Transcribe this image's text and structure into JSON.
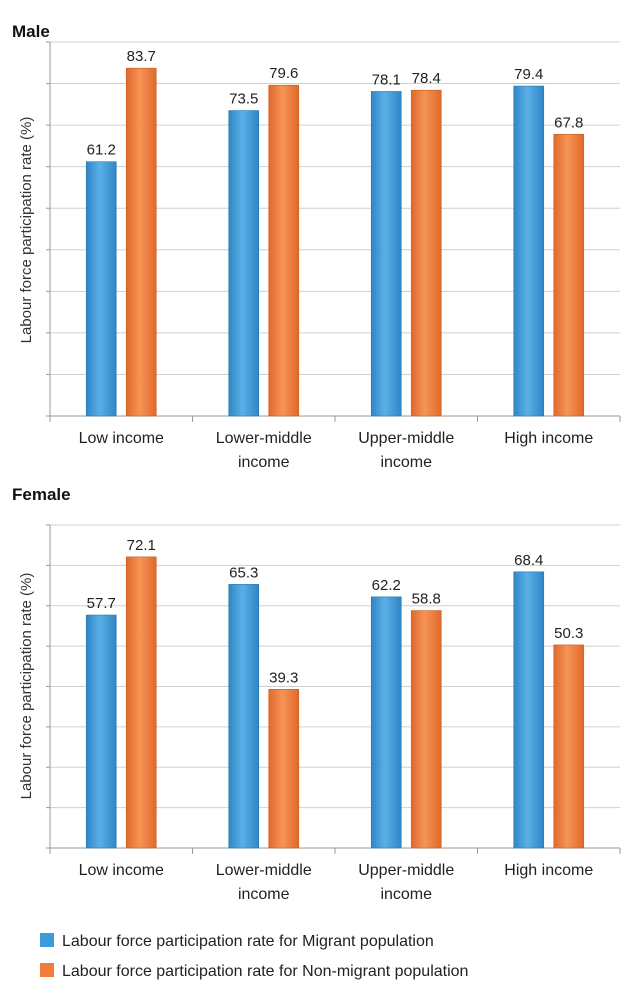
{
  "chart_data": [
    {
      "type": "bar",
      "title": "Male",
      "ylabel": "Labour force participation rate (%)",
      "categories": [
        "Low income",
        "Lower-middle income",
        "Upper-middle income",
        "High income"
      ],
      "category_lines": [
        [
          "Low income"
        ],
        [
          "Lower-middle",
          "income"
        ],
        [
          "Upper-middle",
          "income"
        ],
        [
          "High income"
        ]
      ],
      "ylim": [
        0,
        90
      ],
      "grid": true,
      "series": [
        {
          "name": "Labour force participation rate for Migrant population",
          "color": "#3c9bd9",
          "values": [
            61.2,
            73.5,
            78.1,
            79.4
          ],
          "labels": [
            "61.2",
            "73.5",
            "78.1",
            "79.4"
          ]
        },
        {
          "name": "Labour force participation rate for Non-migrant population",
          "color": "#f07d3a",
          "values": [
            83.7,
            79.6,
            78.4,
            67.8
          ],
          "labels": [
            "83.7",
            "79.6",
            "78.4",
            "67.8"
          ]
        }
      ]
    },
    {
      "type": "bar",
      "title": "Female",
      "ylabel": "Labour force participation rate (%)",
      "categories": [
        "Low income",
        "Lower-middle income",
        "Upper-middle income",
        "High income"
      ],
      "category_lines": [
        [
          "Low income"
        ],
        [
          "Lower-middle",
          "income"
        ],
        [
          "Upper-middle",
          "income"
        ],
        [
          "High income"
        ]
      ],
      "ylim": [
        0,
        80
      ],
      "grid": true,
      "series": [
        {
          "name": "Labour force participation rate for Migrant population",
          "color": "#3c9bd9",
          "values": [
            57.7,
            65.3,
            62.2,
            68.4
          ],
          "labels": [
            "57.7",
            "65.3",
            "62.2",
            "68.4"
          ]
        },
        {
          "name": "Labour force participation rate for Non-migrant population",
          "color": "#f07d3a",
          "values": [
            72.1,
            39.3,
            58.8,
            50.3
          ],
          "labels": [
            "72.1",
            "39.3",
            "58.8",
            "50.3"
          ]
        }
      ]
    }
  ],
  "legend": {
    "placement": "bottom",
    "items": [
      {
        "label": "Labour force participation rate for Migrant population",
        "color": "#3c9bd9"
      },
      {
        "label": "Labour force participation rate for Non-migrant population",
        "color": "#f07d3a"
      }
    ]
  }
}
